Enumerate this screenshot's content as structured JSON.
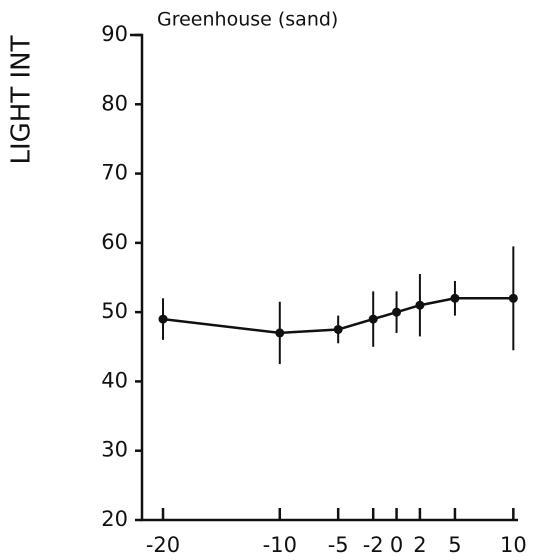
{
  "chart_data": {
    "type": "line",
    "title": "Greenhouse (sand)",
    "y_label": "LIGHT INT",
    "x": [
      -20,
      -10,
      -5,
      -2,
      0,
      2,
      5,
      10
    ],
    "series": [
      {
        "color": "#111111",
        "values": [
          49,
          47,
          47.5,
          49,
          50,
          51,
          52,
          52
        ],
        "errors": [
          3,
          4.5,
          2,
          4,
          3,
          4.5,
          2.5,
          7.5
        ]
      }
    ],
    "xlim": [
      -21.8,
      10.4
    ],
    "ylim": [
      20,
      90
    ],
    "xticks": [
      -20,
      -10,
      -5,
      -2,
      0,
      2,
      5,
      10
    ],
    "yticks": [
      20,
      30,
      40,
      50,
      60,
      70,
      80,
      90
    ]
  }
}
